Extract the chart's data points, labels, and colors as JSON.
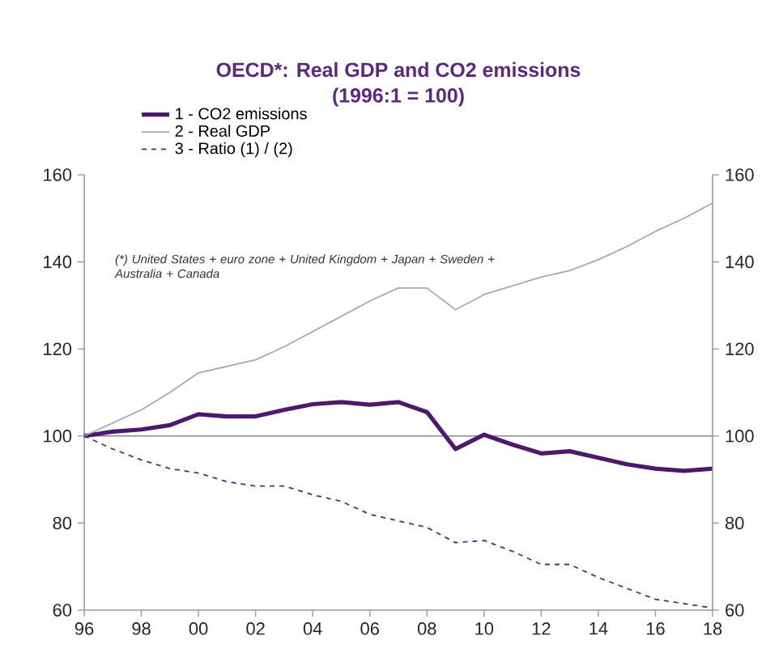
{
  "chart_data": {
    "type": "line",
    "title": "OECD*: Real GDP and CO2 emissions",
    "subtitle": "(1996:1 = 100)",
    "x": [
      1996,
      1997,
      1998,
      1999,
      2000,
      2001,
      2002,
      2003,
      2004,
      2005,
      2006,
      2007,
      2008,
      2009,
      2010,
      2011,
      2012,
      2013,
      2014,
      2015,
      2016,
      2017,
      2018
    ],
    "series": [
      {
        "name": "1 - CO2 emissions",
        "color": "#4b1a6b",
        "line_style": "solid",
        "values": [
          100,
          101,
          101.5,
          102.5,
          105,
          104.5,
          104.5,
          106,
          107.3,
          107.8,
          107.2,
          107.8,
          105.5,
          97,
          100.3,
          98,
          96,
          96.5,
          95,
          93.5,
          92.5,
          92,
          92.5
        ]
      },
      {
        "name": "2 - Real GDP",
        "color": "#aaaaaa",
        "line_style": "solid",
        "values": [
          100,
          103,
          106,
          110,
          114.5,
          116,
          117.5,
          120.5,
          124,
          127.5,
          131,
          134,
          134,
          129,
          132.5,
          134.5,
          136.5,
          138,
          140.5,
          143.5,
          147,
          150,
          153.5
        ]
      },
      {
        "name": "3 - Ratio (1) / (2)",
        "color": "#5b2a7a",
        "line_style": "dashed",
        "values": [
          100,
          97,
          94.5,
          92.5,
          91.5,
          89.5,
          88.5,
          88.5,
          86.5,
          85,
          82,
          80.5,
          79,
          75.5,
          76,
          73.5,
          70.5,
          70.5,
          67.5,
          65,
          62.5,
          61.5,
          60.5
        ]
      }
    ],
    "xlim": [
      1996,
      2018
    ],
    "xticks": [
      {
        "value": 1996,
        "label": "96"
      },
      {
        "value": 1998,
        "label": "98"
      },
      {
        "value": 2000,
        "label": "00"
      },
      {
        "value": 2002,
        "label": "02"
      },
      {
        "value": 2004,
        "label": "04"
      },
      {
        "value": 2006,
        "label": "06"
      },
      {
        "value": 2008,
        "label": "08"
      },
      {
        "value": 2010,
        "label": "10"
      },
      {
        "value": 2012,
        "label": "12"
      },
      {
        "value": 2014,
        "label": "14"
      },
      {
        "value": 2016,
        "label": "16"
      },
      {
        "value": 2018,
        "label": "18"
      }
    ],
    "ylim": [
      60,
      160
    ],
    "yticks": [
      60,
      80,
      100,
      120,
      140,
      160
    ],
    "y2lim": [
      60,
      160
    ],
    "y2ticks": [
      60,
      80,
      100,
      120,
      140,
      160
    ],
    "ref_lines": [
      {
        "axis": "y",
        "value": 100,
        "color": "#888888"
      }
    ],
    "annotations": [
      "(*) United States + euro zone + United Kingdom + Japan + Sweden + Australia + Canada"
    ],
    "legend": "top left",
    "grid": false,
    "marker": "none"
  }
}
